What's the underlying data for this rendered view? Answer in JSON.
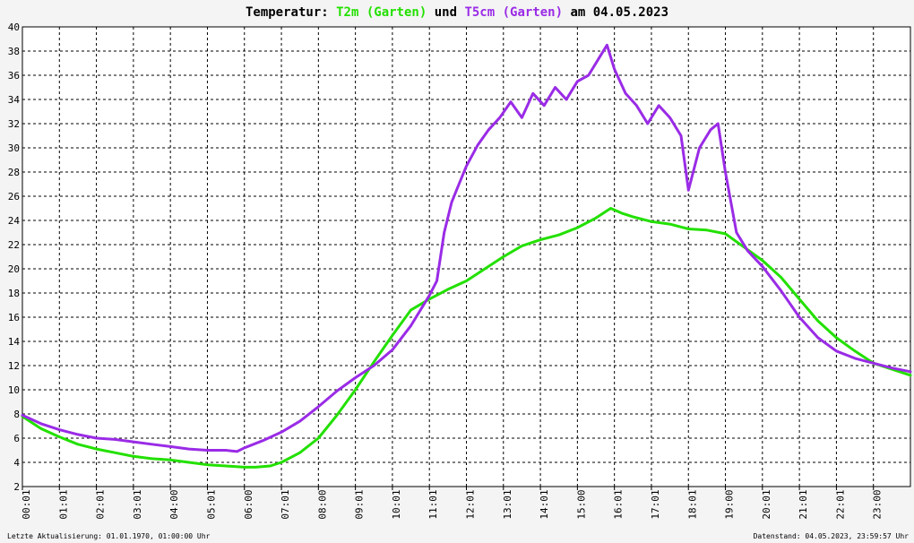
{
  "title": {
    "prefix": "Temperatur: ",
    "series1": "T2m (Garten)",
    "middle": " und ",
    "series2": "T5cm (Garten)",
    "suffix": " am 04.05.2023"
  },
  "footer": {
    "left": "Letzte Aktualisierung: 01.01.1970, 01:00:00 Uhr",
    "right": "Datenstand: 04.05.2023, 23:59:57 Uhr"
  },
  "colors": {
    "t2m": "#22e000",
    "t5cm": "#9a2be6",
    "grid": "#000000",
    "background": "#ffffff"
  },
  "chart_data": {
    "type": "line",
    "title": "Temperatur: T2m (Garten) und T5cm (Garten) am 04.05.2023",
    "xlabel": "",
    "ylabel": "",
    "xlim": [
      0,
      24
    ],
    "ylim": [
      2,
      40
    ],
    "yticks": [
      2,
      4,
      6,
      8,
      10,
      12,
      14,
      16,
      18,
      20,
      22,
      24,
      26,
      28,
      30,
      32,
      34,
      36,
      38,
      40
    ],
    "xtick_labels": [
      "00:01",
      "01:01",
      "02:01",
      "03:01",
      "04:00",
      "05:01",
      "06:00",
      "07:01",
      "08:00",
      "09:01",
      "10:01",
      "11:01",
      "12:01",
      "13:01",
      "14:01",
      "15:00",
      "16:01",
      "17:01",
      "18:01",
      "19:00",
      "20:01",
      "21:01",
      "22:01",
      "23:00"
    ],
    "grid": true,
    "legend": "none",
    "series": [
      {
        "name": "T2m (Garten)",
        "x": [
          0,
          0.5,
          1,
          1.5,
          2,
          2.5,
          3,
          3.5,
          4,
          4.5,
          5,
          5.5,
          6,
          6.3,
          6.7,
          7,
          7.5,
          8,
          8.5,
          9,
          9.5,
          10,
          10.5,
          11,
          11.5,
          12,
          12.5,
          13,
          13.5,
          14,
          14.5,
          15,
          15.5,
          15.9,
          16.2,
          16.5,
          17,
          17.5,
          18,
          18.5,
          19,
          19.5,
          20,
          20.5,
          21,
          21.5,
          22,
          22.5,
          23,
          23.5,
          24
        ],
        "y": [
          7.8,
          6.8,
          6.1,
          5.5,
          5.1,
          4.8,
          4.5,
          4.3,
          4.2,
          4.0,
          3.8,
          3.7,
          3.6,
          3.6,
          3.7,
          4.0,
          4.8,
          6.0,
          7.9,
          10.0,
          12.3,
          14.5,
          16.6,
          17.5,
          18.3,
          19.0,
          20.0,
          21.0,
          21.9,
          22.4,
          22.8,
          23.4,
          24.2,
          25.0,
          24.6,
          24.3,
          23.9,
          23.7,
          23.3,
          23.2,
          22.9,
          21.8,
          20.7,
          19.3,
          17.5,
          15.7,
          14.3,
          13.2,
          12.2,
          11.7,
          11.2
        ]
      },
      {
        "name": "T5cm (Garten)",
        "x": [
          0,
          0.5,
          1,
          1.5,
          2,
          2.5,
          3,
          3.5,
          4,
          4.5,
          5,
          5.5,
          5.8,
          6,
          6.5,
          7,
          7.5,
          8,
          8.5,
          9,
          9.5,
          10,
          10.5,
          11,
          11.2,
          11.4,
          11.6,
          11.8,
          12,
          12.3,
          12.6,
          12.9,
          13.2,
          13.5,
          13.8,
          14.1,
          14.4,
          14.7,
          15,
          15.3,
          15.6,
          15.8,
          16,
          16.3,
          16.6,
          16.9,
          17.2,
          17.5,
          17.8,
          18,
          18.3,
          18.6,
          18.8,
          19,
          19.3,
          19.6,
          20,
          20.5,
          21,
          21.5,
          22,
          22.5,
          23,
          23.5,
          24
        ],
        "y": [
          7.9,
          7.2,
          6.7,
          6.3,
          6.0,
          5.9,
          5.7,
          5.5,
          5.3,
          5.1,
          5.0,
          5.0,
          4.9,
          5.2,
          5.8,
          6.5,
          7.4,
          8.6,
          9.9,
          11.0,
          12.0,
          13.3,
          15.3,
          17.8,
          19.0,
          23.0,
          25.5,
          27.0,
          28.5,
          30.2,
          31.5,
          32.5,
          33.8,
          32.5,
          34.5,
          33.5,
          35.0,
          34.0,
          35.5,
          36.0,
          37.5,
          38.5,
          36.5,
          34.5,
          33.5,
          32.0,
          33.5,
          32.5,
          31.0,
          26.5,
          30.0,
          31.5,
          32.0,
          28.0,
          23.0,
          21.5,
          20.2,
          18.2,
          16.0,
          14.3,
          13.2,
          12.6,
          12.2,
          11.8,
          11.5
        ]
      }
    ]
  }
}
